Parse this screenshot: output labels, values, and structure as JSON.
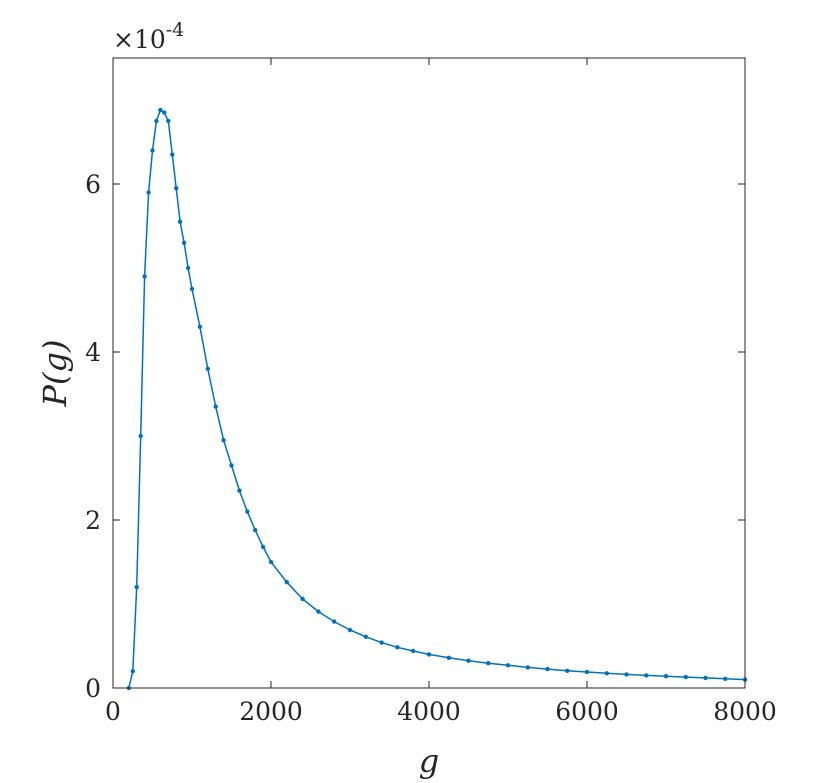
{
  "chart_data": {
    "type": "line",
    "title": "",
    "xlabel": "g",
    "ylabel": "P(g)",
    "xlim": [
      0,
      8000
    ],
    "ylim": [
      0,
      7.5
    ],
    "y_multiplier": "×10",
    "y_multiplier_exponent": "-4",
    "xticks": [
      0,
      2000,
      4000,
      6000,
      8000
    ],
    "xtick_labels": [
      "0",
      "2000",
      "4000",
      "6000",
      "8000"
    ],
    "yticks": [
      0,
      2,
      4,
      6
    ],
    "ytick_labels": [
      "0",
      "2",
      "4",
      "6"
    ],
    "grid": false,
    "legend": "none",
    "series": [
      {
        "color": "#0072BD",
        "marker": "dot",
        "x": [
          200,
          250,
          300,
          350,
          400,
          450,
          500,
          550,
          600,
          650,
          700,
          750,
          800,
          850,
          900,
          950,
          1000,
          1100,
          1200,
          1300,
          1400,
          1500,
          1600,
          1700,
          1800,
          1900,
          2000,
          2200,
          2400,
          2600,
          2800,
          3000,
          3200,
          3400,
          3600,
          3800,
          4000,
          4250,
          4500,
          4750,
          5000,
          5250,
          5500,
          5750,
          6000,
          6250,
          6500,
          6750,
          7000,
          7250,
          7500,
          7750,
          8000
        ],
        "y": [
          0.0,
          0.2,
          1.2,
          3.0,
          4.9,
          5.9,
          6.4,
          6.75,
          6.88,
          6.85,
          6.75,
          6.35,
          5.95,
          5.55,
          5.3,
          5.0,
          4.75,
          4.3,
          3.8,
          3.35,
          2.95,
          2.65,
          2.35,
          2.1,
          1.88,
          1.68,
          1.5,
          1.26,
          1.06,
          0.91,
          0.79,
          0.69,
          0.61,
          0.54,
          0.485,
          0.44,
          0.4,
          0.36,
          0.325,
          0.295,
          0.27,
          0.245,
          0.225,
          0.205,
          0.19,
          0.175,
          0.162,
          0.15,
          0.14,
          0.13,
          0.12,
          0.11,
          0.1
        ]
      }
    ]
  }
}
